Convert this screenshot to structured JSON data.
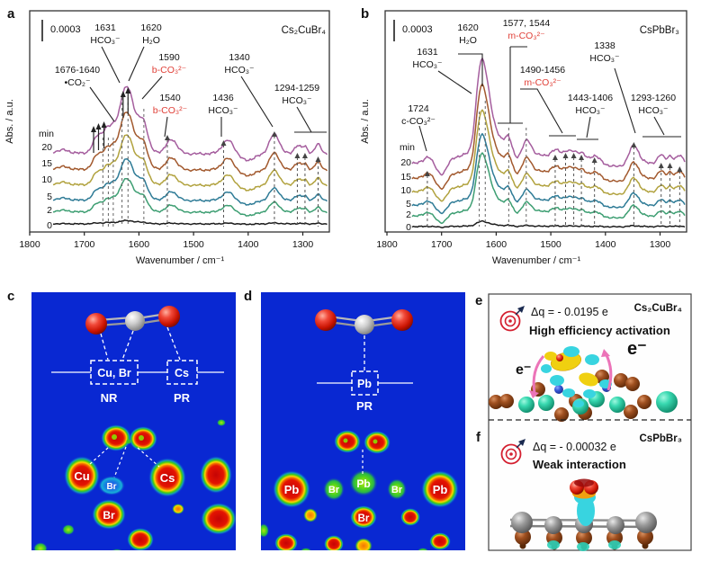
{
  "colors": {
    "map_blue": "#0928d2",
    "annotation_red": "#e04038",
    "caption_red": "#e02424",
    "electron_red": "#e01818",
    "bullseye_red": "#d42030",
    "delta_q_text": "#4a5560"
  },
  "panel_a": {
    "label": "a",
    "compound": "Cs₂CuBr₄",
    "scale_bar": "0.0003",
    "y_label": "Abs. / a.u.",
    "x_label": "Wavenumber / cm⁻¹",
    "time_header": "min",
    "times": [
      "20",
      "15",
      "10",
      "5",
      "2",
      "0"
    ],
    "annotations": [
      {
        "line1": "1676-1640",
        "line2": "•CO₂⁻"
      },
      {
        "line1": "1631",
        "line2": "HCO₃⁻"
      },
      {
        "line1": "1620",
        "line2": "H₂O"
      },
      {
        "line1": "1590",
        "line2": "b-CO₃²⁻"
      },
      {
        "line1": "1540",
        "line2": "b-CO₃²⁻"
      },
      {
        "line1": "1436",
        "line2": "HCO₃⁻"
      },
      {
        "line1": "1340",
        "line2": "HCO₃⁻"
      },
      {
        "line1": "1294-1259",
        "line2": "HCO₃⁻"
      }
    ]
  },
  "panel_b": {
    "label": "b",
    "compound": "CsPbBr₃",
    "scale_bar": "0.0003",
    "y_label": "Abs. / a.u.",
    "x_label": "Wavenumber / cm⁻¹",
    "time_header": "min",
    "times": [
      "20",
      "15",
      "10",
      "5",
      "2",
      "0"
    ],
    "annotations": [
      {
        "line1": "1724",
        "line2": "c-CO₃²⁻"
      },
      {
        "line1": "1631",
        "line2": "HCO₃⁻"
      },
      {
        "line1": "1620",
        "line2": "H₂O"
      },
      {
        "line1": "1577, 1544",
        "line2": "m-CO₃²⁻"
      },
      {
        "line1": "1490-1456",
        "line2": "m-CO₃²⁻"
      },
      {
        "line1": "1443-1406",
        "line2": "HCO₃⁻"
      },
      {
        "line1": "1338",
        "line2": "HCO₃⁻"
      },
      {
        "line1": "1293-1260",
        "line2": "HCO₃⁻"
      }
    ]
  },
  "panel_c": {
    "label": "c",
    "box1_label": "Cu, Br",
    "box2_label": "Cs",
    "site1": "NR",
    "site2": "PR",
    "atoms": {
      "cu": "Cu",
      "br_small": "Br",
      "cs": "Cs",
      "br_bottom": "Br"
    }
  },
  "panel_d": {
    "label": "d",
    "box_label": "Pb",
    "site": "PR",
    "atoms": {
      "pb_left": "Pb",
      "br_left": "Br",
      "pb_center": "Pb",
      "br_right": "Br",
      "pb_right": "Pb",
      "br_bottom": "Br"
    }
  },
  "panel_e": {
    "label": "e",
    "compound": "Cs₂CuBr₄",
    "delta_q": "Δq = - 0.0195 e",
    "caption": "High efficiency activation",
    "electron_left": "e⁻",
    "electron_right": "e⁻"
  },
  "panel_f": {
    "label": "f",
    "compound": "CsPbBr₃",
    "delta_q": "Δq = - 0.00032 e",
    "caption": "Weak interaction"
  },
  "chart_data": [
    {
      "type": "line",
      "panel": "a",
      "title": "In-situ FTIR of Cs₂CuBr₄",
      "xlabel": "Wavenumber / cm⁻¹",
      "ylabel": "Abs. / a.u.",
      "x_range": [
        1800,
        1250
      ],
      "x_ticks": [
        1800,
        1700,
        1600,
        1500,
        1400,
        1300
      ],
      "scale_bar_value": 0.0003,
      "series": [
        {
          "name": "0",
          "color": "#1c1c1c",
          "baseline": 249,
          "scale": 0.05
        },
        {
          "name": "2",
          "color": "#3d9e72",
          "baseline": 236,
          "scale": 0.5
        },
        {
          "name": "5",
          "color": "#2e7b96",
          "baseline": 223,
          "scale": 0.62
        },
        {
          "name": "10",
          "color": "#b1a23e",
          "baseline": 206,
          "scale": 0.75
        },
        {
          "name": "15",
          "color": "#a2592e",
          "baseline": 189,
          "scale": 0.86
        },
        {
          "name": "20",
          "color": "#a55e9e",
          "baseline": 171,
          "scale": 1.0
        }
      ],
      "peaks": [
        [
          1740,
          18,
          0.08
        ],
        [
          1676,
          11,
          0.3
        ],
        [
          1658,
          11,
          0.38
        ],
        [
          1643,
          9,
          0.4
        ],
        [
          1631,
          8,
          0.55
        ],
        [
          1620,
          11,
          1.0
        ],
        [
          1604,
          14,
          0.5
        ],
        [
          1590,
          10,
          0.42
        ],
        [
          1630,
          45,
          0.22
        ],
        [
          1540,
          14,
          0.3
        ],
        [
          1436,
          16,
          0.3
        ],
        [
          1404,
          22,
          -0.14
        ],
        [
          1352,
          13,
          0.42
        ],
        [
          1310,
          8,
          0.18
        ],
        [
          1296,
          7,
          0.15
        ],
        [
          1272,
          8,
          0.2
        ]
      ],
      "dashed_guides": [
        [
          1666,
          153
        ],
        [
          1656,
          153
        ],
        [
          1647,
          153
        ],
        [
          1631,
          108
        ],
        [
          1620,
          108
        ],
        [
          1591,
          121
        ]
      ],
      "arrow_guides": [
        [
          1548,
          150
        ],
        [
          1445,
          156
        ],
        [
          1352,
          146
        ],
        [
          1310,
          170
        ],
        [
          1296,
          170
        ],
        [
          1272,
          174
        ]
      ],
      "solid_arrows": [
        [
          1683,
          140
        ],
        [
          1674,
          137
        ],
        [
          1664,
          135
        ],
        [
          1629,
          101
        ],
        [
          1620,
          97
        ]
      ],
      "render": {
        "x1800": 33,
        "k": 0.607,
        "startX": 59,
        "endX": 364,
        "amp": 52,
        "guideBottom": 252,
        "axisY": 258
      }
    },
    {
      "type": "line",
      "panel": "b",
      "title": "In-situ FTIR of CsPbBr₃",
      "xlabel": "Wavenumber / cm⁻¹",
      "ylabel": "Abs. / a.u.",
      "x_range": [
        1800,
        1250
      ],
      "x_ticks": [
        1800,
        1700,
        1600,
        1500,
        1400,
        1300
      ],
      "scale_bar_value": 0.0003,
      "series": [
        {
          "name": "0",
          "color": "#1c1c1c",
          "baseline": 252,
          "scale": 0.05
        },
        {
          "name": "2",
          "color": "#3d9e72",
          "baseline": 240,
          "scale": 0.6
        },
        {
          "name": "5",
          "color": "#2e7b96",
          "baseline": 228,
          "scale": 0.68
        },
        {
          "name": "10",
          "color": "#b1a23e",
          "baseline": 213,
          "scale": 0.78
        },
        {
          "name": "15",
          "color": "#a2592e",
          "baseline": 198,
          "scale": 0.9
        },
        {
          "name": "20",
          "color": "#a55e9e",
          "baseline": 181,
          "scale": 1.0
        }
      ],
      "peaks": [
        [
          1724,
          9,
          0.1
        ],
        [
          1700,
          13,
          -0.22
        ],
        [
          1631,
          11,
          0.8
        ],
        [
          1620,
          14,
          1.0
        ],
        [
          1598,
          22,
          0.35
        ],
        [
          1640,
          50,
          0.15
        ],
        [
          1577,
          9,
          0.25
        ],
        [
          1544,
          12,
          0.3
        ],
        [
          1520,
          30,
          0.12
        ],
        [
          1490,
          13,
          0.16
        ],
        [
          1470,
          11,
          0.16
        ],
        [
          1456,
          9,
          0.14
        ],
        [
          1443,
          9,
          0.14
        ],
        [
          1420,
          13,
          0.12
        ],
        [
          1380,
          25,
          -0.06
        ],
        [
          1348,
          12,
          0.3
        ],
        [
          1298,
          8,
          0.13
        ],
        [
          1282,
          7,
          0.11
        ],
        [
          1264,
          8,
          0.13
        ]
      ],
      "dashed_guides": [
        [
          1631,
          124
        ],
        [
          1620,
          112
        ],
        [
          1577,
          142
        ],
        [
          1545,
          142
        ]
      ],
      "arrow_guides": [
        [
          1726,
          190
        ],
        [
          1492,
          172
        ],
        [
          1473,
          170
        ],
        [
          1458,
          170
        ],
        [
          1444,
          172
        ],
        [
          1420,
          175
        ],
        [
          1348,
          158
        ],
        [
          1298,
          181
        ],
        [
          1282,
          181
        ],
        [
          1264,
          185
        ]
      ],
      "solid_arrows": [],
      "render": {
        "x1800": 430,
        "k": 0.607,
        "startX": 458,
        "endX": 761,
        "amp": 68,
        "guideBottom": 252,
        "axisY": 258
      }
    }
  ]
}
